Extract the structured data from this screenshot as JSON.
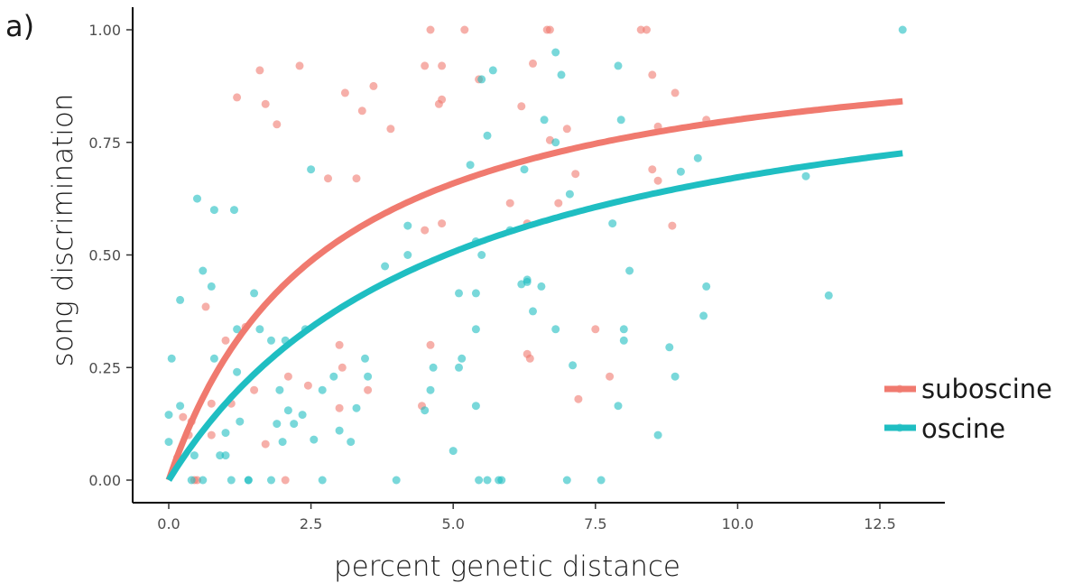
{
  "panel_label": "a)",
  "colors": {
    "suboscine": "#F07A6F",
    "oscine": "#1FBEC2",
    "axis": "#000000",
    "tick_text": "#4d4d4d"
  },
  "chart_data": {
    "type": "scatter",
    "title": "",
    "xlabel": "percent genetic distance",
    "ylabel": "song discrimination",
    "xlim": [
      -0.6,
      13.4
    ],
    "ylim": [
      -0.05,
      1.05
    ],
    "xticks": [
      0,
      2.5,
      5,
      7.5,
      10,
      12.5
    ],
    "xtick_labels": [
      "0.0",
      "2.5",
      "5.0",
      "7.5",
      "10.0",
      "12.5"
    ],
    "yticks": [
      0,
      0.25,
      0.5,
      0.75,
      1
    ],
    "ytick_labels": [
      "0.00",
      "0.25",
      "0.50",
      "0.75",
      "1.00"
    ],
    "grid": false,
    "legend_position": "right",
    "series": [
      {
        "name": "suboscine",
        "color": "#F07A6F",
        "fit": {
          "a": 1.02,
          "k": 0.128
        },
        "points": [
          [
            0.15,
            0.05
          ],
          [
            0.25,
            0.14
          ],
          [
            0.35,
            0.1
          ],
          [
            0.4,
            0.13
          ],
          [
            0.5,
            0.0
          ],
          [
            0.45,
            0.0
          ],
          [
            0.65,
            0.385
          ],
          [
            0.75,
            0.1
          ],
          [
            0.75,
            0.17
          ],
          [
            1.0,
            0.31
          ],
          [
            1.1,
            0.17
          ],
          [
            1.2,
            0.85
          ],
          [
            1.35,
            0.34
          ],
          [
            1.5,
            0.2
          ],
          [
            1.6,
            0.91
          ],
          [
            1.7,
            0.835
          ],
          [
            1.7,
            0.08
          ],
          [
            1.9,
            0.79
          ],
          [
            2.05,
            0.0
          ],
          [
            2.1,
            0.23
          ],
          [
            2.3,
            0.92
          ],
          [
            2.45,
            0.21
          ],
          [
            2.8,
            0.67
          ],
          [
            3.0,
            0.3
          ],
          [
            3.0,
            0.16
          ],
          [
            3.05,
            0.25
          ],
          [
            3.1,
            0.86
          ],
          [
            3.3,
            0.67
          ],
          [
            3.4,
            0.82
          ],
          [
            3.5,
            0.2
          ],
          [
            3.6,
            0.875
          ],
          [
            3.9,
            0.78
          ],
          [
            4.45,
            0.165
          ],
          [
            4.5,
            0.92
          ],
          [
            4.5,
            0.555
          ],
          [
            4.6,
            1.0
          ],
          [
            4.6,
            0.3
          ],
          [
            4.75,
            0.835
          ],
          [
            4.8,
            0.845
          ],
          [
            4.8,
            0.57
          ],
          [
            4.8,
            0.92
          ],
          [
            5.2,
            1.0
          ],
          [
            5.45,
            0.89
          ],
          [
            6.0,
            0.615
          ],
          [
            6.2,
            0.83
          ],
          [
            6.3,
            0.57
          ],
          [
            6.3,
            0.28
          ],
          [
            6.35,
            0.27
          ],
          [
            6.4,
            0.925
          ],
          [
            6.65,
            1.0
          ],
          [
            6.7,
            1.0
          ],
          [
            6.7,
            0.755
          ],
          [
            6.85,
            0.615
          ],
          [
            7.0,
            0.78
          ],
          [
            7.15,
            0.68
          ],
          [
            7.2,
            0.18
          ],
          [
            7.5,
            0.335
          ],
          [
            7.75,
            0.23
          ],
          [
            8.3,
            1.0
          ],
          [
            8.4,
            1.0
          ],
          [
            8.5,
            0.9
          ],
          [
            8.5,
            0.69
          ],
          [
            8.6,
            0.665
          ],
          [
            8.6,
            0.785
          ],
          [
            8.85,
            0.565
          ],
          [
            8.9,
            0.86
          ],
          [
            9.45,
            0.8
          ]
        ]
      },
      {
        "name": "oscine",
        "color": "#1FBEC2",
        "fit": {
          "a": 1.0,
          "k": 0.072
        },
        "points": [
          [
            0.0,
            0.145
          ],
          [
            0.05,
            0.27
          ],
          [
            0.0,
            0.085
          ],
          [
            0.2,
            0.4
          ],
          [
            0.2,
            0.165
          ],
          [
            0.4,
            0.0
          ],
          [
            0.45,
            0.055
          ],
          [
            0.5,
            0.625
          ],
          [
            0.6,
            0.465
          ],
          [
            0.6,
            0.0
          ],
          [
            0.75,
            0.43
          ],
          [
            0.8,
            0.6
          ],
          [
            0.8,
            0.27
          ],
          [
            0.9,
            0.055
          ],
          [
            1.0,
            0.055
          ],
          [
            1.0,
            0.105
          ],
          [
            1.1,
            0.0
          ],
          [
            1.15,
            0.6
          ],
          [
            1.2,
            0.335
          ],
          [
            1.2,
            0.24
          ],
          [
            1.25,
            0.13
          ],
          [
            1.4,
            0.0
          ],
          [
            1.4,
            0.0
          ],
          [
            1.5,
            0.415
          ],
          [
            1.6,
            0.335
          ],
          [
            1.8,
            0.0
          ],
          [
            1.8,
            0.31
          ],
          [
            1.9,
            0.125
          ],
          [
            1.95,
            0.2
          ],
          [
            2.0,
            0.085
          ],
          [
            2.05,
            0.31
          ],
          [
            2.1,
            0.155
          ],
          [
            2.2,
            0.125
          ],
          [
            2.35,
            0.145
          ],
          [
            2.4,
            0.335
          ],
          [
            2.5,
            0.69
          ],
          [
            2.55,
            0.09
          ],
          [
            2.7,
            0.2
          ],
          [
            2.7,
            0.0
          ],
          [
            2.9,
            0.23
          ],
          [
            3.0,
            0.11
          ],
          [
            3.2,
            0.085
          ],
          [
            3.3,
            0.16
          ],
          [
            3.45,
            0.27
          ],
          [
            3.5,
            0.23
          ],
          [
            3.8,
            0.475
          ],
          [
            4.0,
            0.0
          ],
          [
            4.2,
            0.565
          ],
          [
            4.2,
            0.5
          ],
          [
            4.5,
            0.155
          ],
          [
            4.6,
            0.2
          ],
          [
            4.65,
            0.25
          ],
          [
            5.0,
            0.065
          ],
          [
            5.1,
            0.415
          ],
          [
            5.1,
            0.25
          ],
          [
            5.15,
            0.27
          ],
          [
            5.3,
            0.7
          ],
          [
            5.4,
            0.53
          ],
          [
            5.4,
            0.415
          ],
          [
            5.4,
            0.165
          ],
          [
            5.4,
            0.335
          ],
          [
            5.45,
            0.0
          ],
          [
            5.5,
            0.5
          ],
          [
            5.5,
            0.89
          ],
          [
            5.6,
            0.765
          ],
          [
            5.6,
            0.0
          ],
          [
            5.7,
            0.91
          ],
          [
            5.8,
            0.0
          ],
          [
            5.85,
            0.0
          ],
          [
            6.0,
            0.555
          ],
          [
            6.2,
            0.435
          ],
          [
            6.25,
            0.69
          ],
          [
            6.3,
            0.44
          ],
          [
            6.3,
            0.445
          ],
          [
            6.4,
            0.375
          ],
          [
            6.55,
            0.43
          ],
          [
            6.6,
            0.8
          ],
          [
            6.8,
            0.95
          ],
          [
            6.8,
            0.75
          ],
          [
            6.8,
            0.335
          ],
          [
            6.9,
            0.9
          ],
          [
            7.0,
            0.0
          ],
          [
            7.05,
            0.635
          ],
          [
            7.1,
            0.255
          ],
          [
            7.6,
            0.0
          ],
          [
            7.8,
            0.57
          ],
          [
            7.9,
            0.92
          ],
          [
            7.9,
            0.165
          ],
          [
            7.95,
            0.8
          ],
          [
            8.0,
            0.335
          ],
          [
            8.0,
            0.31
          ],
          [
            8.1,
            0.465
          ],
          [
            8.6,
            0.1
          ],
          [
            8.8,
            0.295
          ],
          [
            8.9,
            0.23
          ],
          [
            9.0,
            0.685
          ],
          [
            9.3,
            0.715
          ],
          [
            9.4,
            0.365
          ],
          [
            9.45,
            0.43
          ],
          [
            11.2,
            0.675
          ],
          [
            11.6,
            0.41
          ],
          [
            12.9,
            1.0
          ]
        ]
      }
    ]
  }
}
